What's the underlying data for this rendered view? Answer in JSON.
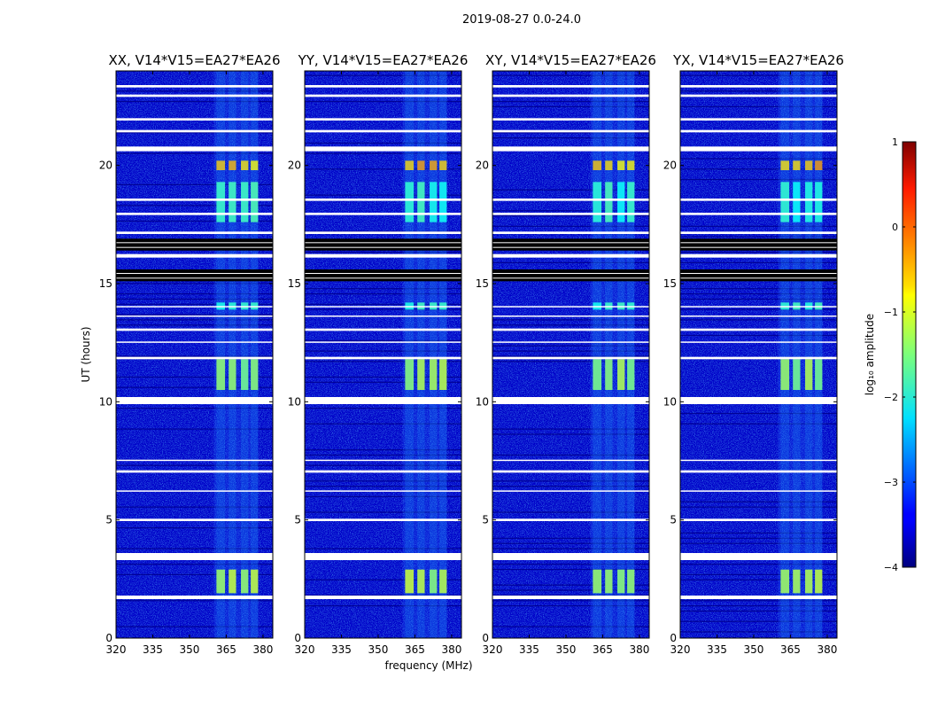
{
  "figure": {
    "suptitle": "2019-08-27 0.0-24.0"
  },
  "colors": {
    "background": "#0000c8",
    "low": "#00008f",
    "flag_white": "#ffffff",
    "flag_black": "#000000"
  },
  "chart_data": {
    "type": "heatmap",
    "title": "2019-08-27 0.0-24.0",
    "xlabel": "frequency (MHz)",
    "ylabel": "UT (hours)",
    "xlim": [
      320,
      384
    ],
    "ylim": [
      0,
      24
    ],
    "x_ticks": [
      320,
      335,
      350,
      365,
      380
    ],
    "y_ticks": [
      0,
      5,
      10,
      15,
      20
    ],
    "panels": [
      {
        "title": "XX, V14*V15=EA27*EA26",
        "polarization": "XX"
      },
      {
        "title": "YY, V14*V15=EA27*EA26",
        "polarization": "YY"
      },
      {
        "title": "XY, V14*V15=EA27*EA26",
        "polarization": "XY"
      },
      {
        "title": "YX, V14*V15=EA27*EA26",
        "polarization": "YX"
      }
    ],
    "rfi_band_mhz": [
      360,
      378
    ],
    "rfi_channels_mhz": [
      [
        361,
        364.5
      ],
      [
        366,
        369
      ],
      [
        371,
        374
      ],
      [
        375,
        378
      ]
    ],
    "rfi_bright_windows_ut": [
      {
        "t": [
          1.9,
          2.9
        ],
        "log_amp": -1.2
      },
      {
        "t": [
          10.5,
          11.8
        ],
        "log_amp": -1.3
      },
      {
        "t": [
          17.6,
          19.3
        ],
        "log_amp": -1.9
      },
      {
        "t": [
          19.8,
          20.2
        ],
        "log_amp": -0.5
      },
      {
        "t": [
          13.9,
          14.2
        ],
        "log_amp": -1.9
      }
    ],
    "flagged_white_ut": [
      [
        1.65,
        1.8
      ],
      [
        3.3,
        3.6
      ],
      [
        4.95,
        5.05
      ],
      [
        6.2,
        6.25
      ],
      [
        7.0,
        7.1
      ],
      [
        7.5,
        7.55
      ],
      [
        9.9,
        10.2
      ],
      [
        11.8,
        11.9
      ],
      [
        12.5,
        12.55
      ],
      [
        13.0,
        13.1
      ],
      [
        13.6,
        13.65
      ],
      [
        14.0,
        14.05
      ],
      [
        16.1,
        16.25
      ],
      [
        17.1,
        17.2
      ],
      [
        17.9,
        18.0
      ],
      [
        18.5,
        18.6
      ],
      [
        20.6,
        20.8
      ],
      [
        21.4,
        21.5
      ],
      [
        21.9,
        22.0
      ],
      [
        22.9,
        23.0
      ],
      [
        23.3,
        23.4
      ]
    ],
    "flagged_black_ut": [
      [
        15.1,
        15.6
      ],
      [
        16.4,
        16.9
      ]
    ],
    "colorbar": {
      "label": "log₁₀ amplitude",
      "ticks": [
        1,
        0,
        -1,
        -2,
        -3,
        -4
      ],
      "tick_labels": [
        "1",
        "0",
        "−1",
        "−2",
        "−3",
        "−4"
      ],
      "range": [
        -4,
        1
      ],
      "colormap": "jet"
    }
  }
}
